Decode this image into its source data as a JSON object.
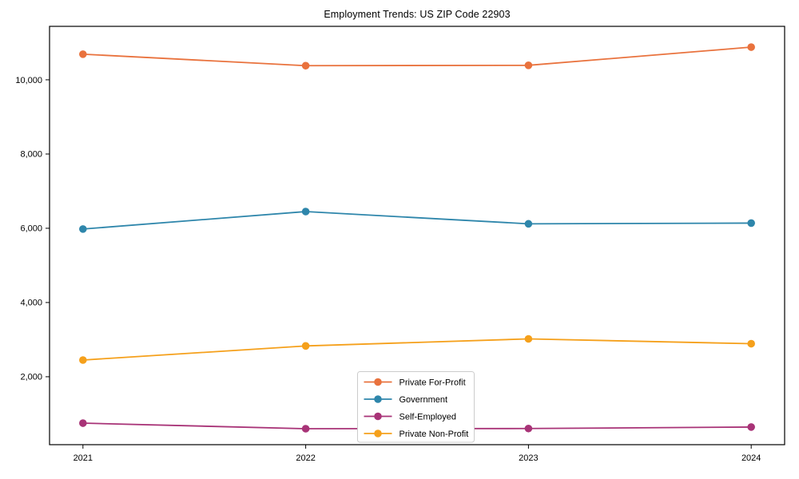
{
  "chart_data": {
    "type": "line",
    "title": "Employment Trends: US ZIP Code 22903",
    "xlabel": "",
    "ylabel": "",
    "categories": [
      "2021",
      "2022",
      "2023",
      "2024"
    ],
    "series": [
      {
        "name": "Private For-Profit",
        "color": "#e9723d",
        "values": [
          10690,
          10380,
          10390,
          10880
        ]
      },
      {
        "name": "Government",
        "color": "#2e86ab",
        "values": [
          5980,
          6450,
          6120,
          6140
        ]
      },
      {
        "name": "Self-Employed",
        "color": "#a83377",
        "values": [
          750,
          600,
          605,
          645
        ]
      },
      {
        "name": "Private Non-Profit",
        "color": "#f5a01b",
        "values": [
          2450,
          2830,
          3020,
          2890
        ]
      }
    ],
    "yticks": [
      2000,
      4000,
      6000,
      8000,
      10000
    ],
    "ytick_labels": [
      "2,000",
      "4,000",
      "6,000",
      "8,000",
      "10,000"
    ],
    "ylim": [
      170,
      11440
    ],
    "xlim_index": [
      -0.15,
      3.15
    ],
    "grid": false,
    "legend_position": "lower center",
    "marker": "circle",
    "axis_color": "#000000",
    "text_color": "#000000",
    "legend_border_color": "#cccccc",
    "background_color": "#ffffff"
  }
}
